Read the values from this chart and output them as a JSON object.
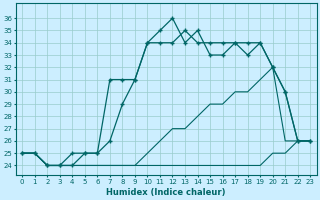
{
  "xlabel": "Humidex (Indice chaleur)",
  "bg_color": "#cceeff",
  "line_color": "#006666",
  "grid_color": "#99cccc",
  "x_ticks": [
    0,
    1,
    2,
    3,
    4,
    5,
    6,
    7,
    8,
    9,
    10,
    11,
    12,
    13,
    14,
    15,
    16,
    17,
    18,
    19,
    20,
    21,
    22,
    23
  ],
  "y_ticks": [
    24,
    25,
    26,
    27,
    28,
    29,
    30,
    31,
    32,
    33,
    34,
    35,
    36
  ],
  "ylim": [
    23.2,
    37.2
  ],
  "xlim": [
    -0.5,
    23.5
  ],
  "series": [
    {
      "x": [
        0,
        1,
        2,
        3,
        4,
        5,
        6,
        7,
        8,
        9,
        10,
        11,
        12,
        13,
        14,
        15,
        16,
        17,
        18,
        19,
        20,
        21,
        22,
        23
      ],
      "y": [
        25,
        25,
        24,
        24,
        24,
        24,
        24,
        24,
        24,
        24,
        24,
        24,
        24,
        24,
        24,
        24,
        24,
        24,
        24,
        24,
        25,
        25,
        26,
        26
      ],
      "marker": null,
      "lw": 0.8
    },
    {
      "x": [
        0,
        1,
        2,
        3,
        4,
        5,
        6,
        7,
        8,
        9,
        10,
        11,
        12,
        13,
        14,
        15,
        16,
        17,
        18,
        19,
        20,
        21,
        22,
        23
      ],
      "y": [
        25,
        25,
        24,
        24,
        24,
        24,
        24,
        24,
        24,
        24,
        25,
        26,
        27,
        27,
        28,
        29,
        29,
        30,
        30,
        31,
        32,
        26,
        26,
        26
      ],
      "marker": null,
      "lw": 0.8
    },
    {
      "x": [
        0,
        1,
        2,
        3,
        4,
        5,
        6,
        7,
        8,
        9,
        10,
        11,
        12,
        13,
        14,
        15,
        16,
        17,
        18,
        19,
        20,
        21,
        22,
        23
      ],
      "y": [
        25,
        25,
        24,
        24,
        25,
        25,
        25,
        26,
        29,
        31,
        34,
        34,
        34,
        35,
        34,
        34,
        34,
        34,
        34,
        34,
        32,
        30,
        26,
        26
      ],
      "marker": "+",
      "lw": 0.9,
      "ms": 3.5
    },
    {
      "x": [
        0,
        1,
        2,
        3,
        4,
        5,
        6,
        7,
        8,
        9,
        10,
        11,
        12,
        13,
        14,
        15,
        16,
        17,
        18,
        19,
        20,
        21,
        22,
        23
      ],
      "y": [
        25,
        25,
        24,
        24,
        24,
        25,
        25,
        31,
        31,
        31,
        34,
        35,
        36,
        34,
        35,
        33,
        33,
        34,
        33,
        34,
        32,
        30,
        26,
        26
      ],
      "marker": "+",
      "lw": 0.9,
      "ms": 3.5
    }
  ]
}
